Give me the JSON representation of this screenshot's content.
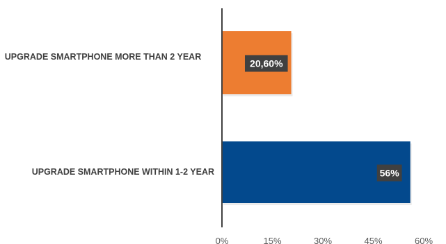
{
  "chart_data": {
    "type": "bar",
    "orientation": "horizontal",
    "categories": [
      "UPGRADE SMARTPHONE MORE THAN 2 YEAR",
      "UPGRADE SMARTPHONE WITHIN 1-2 YEAR"
    ],
    "values": [
      20.6,
      56
    ],
    "data_labels": [
      "20,60%",
      "56%"
    ],
    "colors": [
      "#ED7D31",
      "#03498D"
    ],
    "label_bg": "#404040",
    "x_ticks": [
      "0%",
      "15%",
      "30%",
      "45%",
      "60%"
    ],
    "xlim": [
      0,
      60
    ],
    "grid": false,
    "title": "",
    "xlabel": "",
    "ylabel": ""
  }
}
